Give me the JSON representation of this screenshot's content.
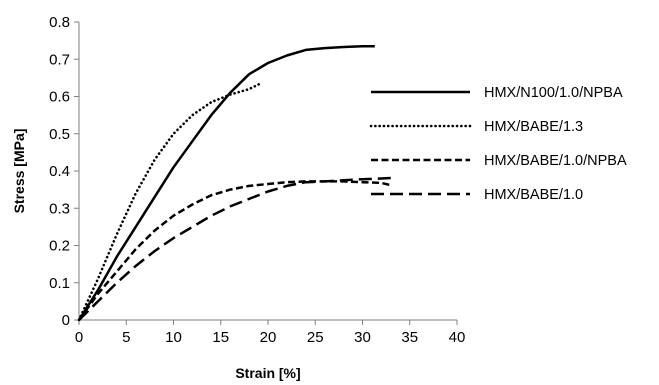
{
  "chart_data": {
    "type": "line",
    "xlabel": "Strain [%]",
    "ylabel": "Stress [MPa]",
    "xlim": [
      0,
      40
    ],
    "ylim": [
      0,
      0.8
    ],
    "x_ticks": [
      "0",
      "5",
      "10",
      "15",
      "20",
      "25",
      "30",
      "35",
      "40"
    ],
    "y_ticks": [
      "0",
      "0.1",
      "0.2",
      "0.3",
      "0.4",
      "0.5",
      "0.6",
      "0.7",
      "0.8"
    ],
    "grid": false,
    "legend_position": "right",
    "series": [
      {
        "name": "HMX/N100/1.0/NPBA",
        "style": "solid",
        "color": "#000000",
        "points": [
          [
            0,
            0
          ],
          [
            2,
            0.08
          ],
          [
            4,
            0.17
          ],
          [
            6,
            0.25
          ],
          [
            8,
            0.33
          ],
          [
            10,
            0.41
          ],
          [
            12,
            0.48
          ],
          [
            14,
            0.55
          ],
          [
            16,
            0.61
          ],
          [
            18,
            0.66
          ],
          [
            20,
            0.69
          ],
          [
            22,
            0.71
          ],
          [
            24,
            0.725
          ],
          [
            26,
            0.73
          ],
          [
            28,
            0.733
          ],
          [
            30,
            0.735
          ],
          [
            31.3,
            0.735
          ]
        ]
      },
      {
        "name": "HMX/BABE/1.3",
        "style": "dotted",
        "color": "#000000",
        "points": [
          [
            0,
            0
          ],
          [
            2,
            0.11
          ],
          [
            4,
            0.23
          ],
          [
            6,
            0.34
          ],
          [
            8,
            0.43
          ],
          [
            10,
            0.5
          ],
          [
            12,
            0.55
          ],
          [
            14,
            0.585
          ],
          [
            16,
            0.605
          ],
          [
            18,
            0.62
          ],
          [
            19.2,
            0.635
          ]
        ]
      },
      {
        "name": "HMX/BABE/1.0/NPBA",
        "style": "short-dash",
        "color": "#000000",
        "points": [
          [
            0,
            0
          ],
          [
            2,
            0.07
          ],
          [
            4,
            0.13
          ],
          [
            6,
            0.19
          ],
          [
            8,
            0.24
          ],
          [
            10,
            0.28
          ],
          [
            12,
            0.31
          ],
          [
            14,
            0.335
          ],
          [
            16,
            0.35
          ],
          [
            18,
            0.36
          ],
          [
            20,
            0.365
          ],
          [
            22,
            0.37
          ],
          [
            24,
            0.372
          ],
          [
            26,
            0.372
          ],
          [
            28,
            0.372
          ],
          [
            30,
            0.37
          ],
          [
            32,
            0.368
          ],
          [
            33,
            0.362
          ]
        ]
      },
      {
        "name": "HMX/BABE/1.0",
        "style": "long-dash",
        "color": "#000000",
        "points": [
          [
            0,
            0
          ],
          [
            2,
            0.05
          ],
          [
            4,
            0.1
          ],
          [
            6,
            0.145
          ],
          [
            8,
            0.185
          ],
          [
            10,
            0.22
          ],
          [
            12,
            0.25
          ],
          [
            14,
            0.28
          ],
          [
            16,
            0.305
          ],
          [
            18,
            0.325
          ],
          [
            20,
            0.345
          ],
          [
            22,
            0.36
          ],
          [
            24,
            0.37
          ],
          [
            26,
            0.372
          ],
          [
            28,
            0.375
          ],
          [
            30,
            0.378
          ],
          [
            32,
            0.38
          ],
          [
            33.5,
            0.382
          ]
        ]
      }
    ]
  }
}
